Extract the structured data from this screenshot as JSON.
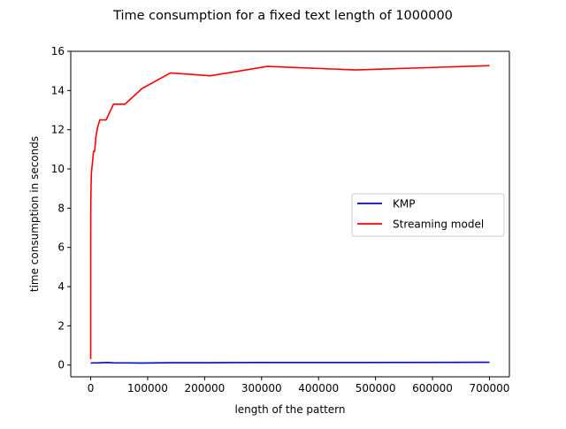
{
  "chart_data": {
    "type": "line",
    "title": "Time consumption for a fixed text length of 1000000",
    "xlabel": "length of the pattern",
    "ylabel": "time consumption in seconds",
    "xlim": [
      -35000,
      735000
    ],
    "ylim": [
      -0.6,
      16
    ],
    "xticks": [
      0,
      100000,
      200000,
      300000,
      400000,
      500000,
      600000,
      700000
    ],
    "yticks": [
      0,
      2,
      4,
      6,
      8,
      10,
      12,
      14,
      16
    ],
    "grid": false,
    "legend_position": "center-right",
    "series": [
      {
        "name": "KMP",
        "color": "#0000ff",
        "x": [
          1,
          10,
          100,
          1000,
          2000,
          5000,
          10000,
          20000,
          30000,
          40000,
          60000,
          90000,
          140000,
          210000,
          310000,
          465000,
          700000
        ],
        "y": [
          0.1,
          0.1,
          0.1,
          0.1,
          0.11,
          0.11,
          0.11,
          0.12,
          0.13,
          0.11,
          0.11,
          0.1,
          0.12,
          0.12,
          0.13,
          0.13,
          0.14
        ]
      },
      {
        "name": "Streaming model",
        "color": "#ff0000",
        "x": [
          1,
          10,
          100,
          300,
          700,
          1200,
          2000,
          3000,
          5000,
          7000,
          9000,
          12000,
          16000,
          20000,
          27000,
          40000,
          60000,
          90000,
          140000,
          210000,
          310000,
          465000,
          700000
        ],
        "y": [
          0.3,
          3.9,
          7.5,
          8.4,
          9.2,
          9.8,
          10.0,
          10.3,
          10.9,
          10.9,
          11.6,
          12.1,
          12.5,
          12.5,
          12.5,
          13.3,
          13.3,
          14.1,
          14.9,
          14.75,
          15.23,
          15.05,
          15.27
        ]
      }
    ]
  }
}
